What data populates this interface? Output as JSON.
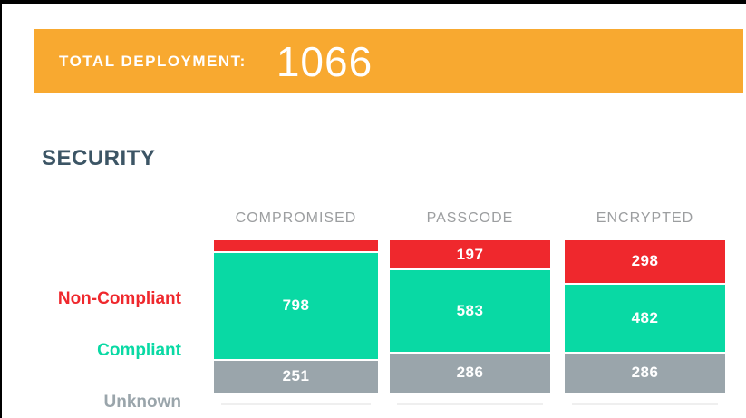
{
  "banner": {
    "label": "TOTAL DEPLOYMENT:",
    "value": "1066",
    "background": "#F8A930",
    "text_color": "#FFFFFF"
  },
  "section": {
    "title": "SECURITY",
    "title_color": "#3C5565"
  },
  "colors": {
    "non_compliant_red": "#EF282D",
    "compliant_teal": "#09D9A4",
    "unknown_gray": "#9AA5AB",
    "column_header_gray": "#9C9EA0"
  },
  "chart_data": {
    "type": "bar",
    "stacked": true,
    "orientation": "vertical",
    "title": "SECURITY",
    "grid": false,
    "legend_position": "left",
    "categories": [
      "COMPROMISED",
      "PASSCODE",
      "ENCRYPTED"
    ],
    "series": [
      {
        "name": "Non-Compliant",
        "color": "#EF282D",
        "values": [
          17,
          197,
          298
        ],
        "value_labels": [
          "",
          "197",
          "298"
        ]
      },
      {
        "name": "Compliant",
        "color": "#09D9A4",
        "values": [
          798,
          583,
          482
        ],
        "value_labels": [
          "798",
          "583",
          "482"
        ]
      },
      {
        "name": "Unknown",
        "color": "#9AA5AB",
        "values": [
          251,
          286,
          286
        ],
        "value_labels": [
          "251",
          "286",
          "286"
        ]
      }
    ],
    "column_totals": [
      1066,
      1066,
      1066
    ],
    "total": 1066
  }
}
